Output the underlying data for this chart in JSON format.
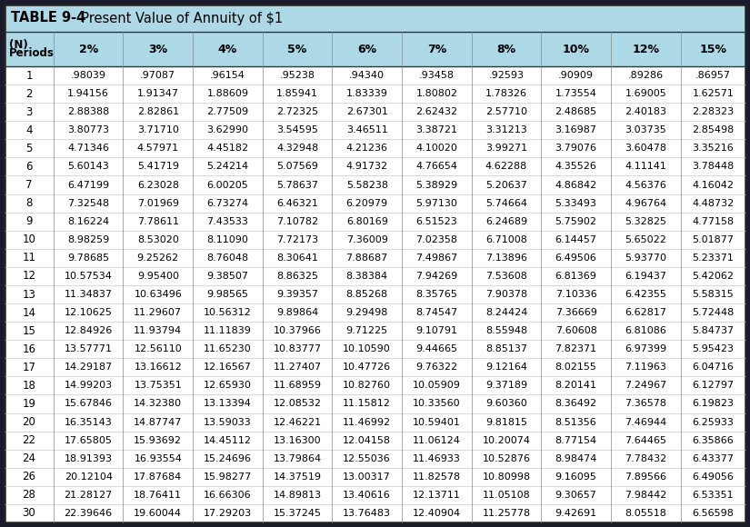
{
  "title_bold": "TABLE 9-4",
  "title_normal": "  Present Value of Annuity of $1",
  "col_headers": [
    "(N)\nPeriods",
    "2%",
    "3%",
    "4%",
    "5%",
    "6%",
    "7%",
    "8%",
    "10%",
    "12%",
    "15%"
  ],
  "rows": [
    [
      1,
      0.98039,
      0.97087,
      0.96154,
      0.95238,
      0.9434,
      0.93458,
      0.92593,
      0.90909,
      0.89286,
      0.86957
    ],
    [
      2,
      1.94156,
      1.91347,
      1.88609,
      1.85941,
      1.83339,
      1.80802,
      1.78326,
      1.73554,
      1.69005,
      1.62571
    ],
    [
      3,
      2.88388,
      2.82861,
      2.77509,
      2.72325,
      2.67301,
      2.62432,
      2.5771,
      2.48685,
      2.40183,
      2.28323
    ],
    [
      4,
      3.80773,
      3.7171,
      3.6299,
      3.54595,
      3.46511,
      3.38721,
      3.31213,
      3.16987,
      3.03735,
      2.85498
    ],
    [
      5,
      4.71346,
      4.57971,
      4.45182,
      4.32948,
      4.21236,
      4.1002,
      3.99271,
      3.79076,
      3.60478,
      3.35216
    ],
    [
      6,
      5.60143,
      5.41719,
      5.24214,
      5.07569,
      4.91732,
      4.76654,
      4.62288,
      4.35526,
      4.11141,
      3.78448
    ],
    [
      7,
      6.47199,
      6.23028,
      6.00205,
      5.78637,
      5.58238,
      5.38929,
      5.20637,
      4.86842,
      4.56376,
      4.16042
    ],
    [
      8,
      7.32548,
      7.01969,
      6.73274,
      6.46321,
      6.20979,
      5.9713,
      5.74664,
      5.33493,
      4.96764,
      4.48732
    ],
    [
      9,
      8.16224,
      7.78611,
      7.43533,
      7.10782,
      6.80169,
      6.51523,
      6.24689,
      5.75902,
      5.32825,
      4.77158
    ],
    [
      10,
      8.98259,
      8.5302,
      8.1109,
      7.72173,
      7.36009,
      7.02358,
      6.71008,
      6.14457,
      5.65022,
      5.01877
    ],
    [
      11,
      9.78685,
      9.25262,
      8.76048,
      8.30641,
      7.88687,
      7.49867,
      7.13896,
      6.49506,
      5.9377,
      5.23371
    ],
    [
      12,
      10.57534,
      9.954,
      9.38507,
      8.86325,
      8.38384,
      7.94269,
      7.53608,
      6.81369,
      6.19437,
      5.42062
    ],
    [
      13,
      11.34837,
      10.63496,
      9.98565,
      9.39357,
      8.85268,
      8.35765,
      7.90378,
      7.10336,
      6.42355,
      5.58315
    ],
    [
      14,
      12.10625,
      11.29607,
      10.56312,
      9.89864,
      9.29498,
      8.74547,
      8.24424,
      7.36669,
      6.62817,
      5.72448
    ],
    [
      15,
      12.84926,
      11.93794,
      11.11839,
      10.37966,
      9.71225,
      9.10791,
      8.55948,
      7.60608,
      6.81086,
      5.84737
    ],
    [
      16,
      13.57771,
      12.5611,
      11.6523,
      10.83777,
      10.1059,
      9.44665,
      8.85137,
      7.82371,
      6.97399,
      5.95423
    ],
    [
      17,
      14.29187,
      13.16612,
      12.16567,
      11.27407,
      10.47726,
      9.76322,
      9.12164,
      8.02155,
      7.11963,
      6.04716
    ],
    [
      18,
      14.99203,
      13.75351,
      12.6593,
      11.68959,
      10.8276,
      10.05909,
      9.37189,
      8.20141,
      7.24967,
      6.12797
    ],
    [
      19,
      15.67846,
      14.3238,
      13.13394,
      12.08532,
      11.15812,
      10.3356,
      9.6036,
      8.36492,
      7.36578,
      6.19823
    ],
    [
      20,
      16.35143,
      14.87747,
      13.59033,
      12.46221,
      11.46992,
      10.59401,
      9.81815,
      8.51356,
      7.46944,
      6.25933
    ],
    [
      22,
      17.65805,
      15.93692,
      14.45112,
      13.163,
      12.04158,
      11.06124,
      10.20074,
      8.77154,
      7.64465,
      6.35866
    ],
    [
      24,
      18.91393,
      16.93554,
      15.24696,
      13.79864,
      12.55036,
      11.46933,
      10.52876,
      8.98474,
      7.78432,
      6.43377
    ],
    [
      26,
      20.12104,
      17.87684,
      15.98277,
      14.37519,
      13.00317,
      11.82578,
      10.80998,
      9.16095,
      7.89566,
      6.49056
    ],
    [
      28,
      21.28127,
      18.76411,
      16.66306,
      14.89813,
      13.40616,
      12.13711,
      11.05108,
      9.30657,
      7.98442,
      6.53351
    ],
    [
      30,
      22.39646,
      19.60044,
      17.29203,
      15.37245,
      13.76483,
      12.40904,
      11.25778,
      9.42691,
      8.05518,
      6.56598
    ]
  ],
  "title_bg": "#ADD8E6",
  "header_bg": "#ADD8E6",
  "row_bg_white": "#FFFFFF",
  "outer_border_color": "#1a1a2e",
  "outer_bg": "#1a1a2e",
  "text_color": "#000000",
  "col_widths_rel": [
    52,
    74,
    74,
    74,
    74,
    74,
    74,
    74,
    74,
    74,
    69
  ]
}
